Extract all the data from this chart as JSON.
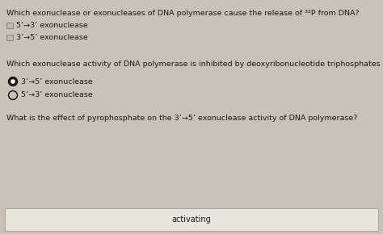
{
  "bg_color": "#c8c2b8",
  "content_bg": "#d8d2c8",
  "title1": "Which exonuclease or exonucleases of DNA polymerase cause the release of ³²P from DNA?",
  "checkbox1_label": "5’→3’ exonuclease",
  "checkbox2_label": "3’→5’ exonuclease",
  "title2": "Which exonuclease activity of DNA polymerase is inhibited by deoxyribonucleotide triphosphates (dNTPs)?",
  "radio1_label": "3’→5’ exonuclease",
  "radio2_label": "5’→3’ exonuclease",
  "title3": "What is the effect of pyrophosphate on the 3’→5’ exonuclease activity of DNA polymerase?",
  "answer_box_text": "activating",
  "answer_box_color": "#e8e4de",
  "answer_box_border": "#b0a898",
  "text_color": "#1a1a1a",
  "font_size_title": 6.8,
  "font_size_option": 6.8,
  "font_size_answer": 7.0,
  "checkbox_color": "#c0bab0",
  "checkbox_border": "#888880",
  "radio_filled_color": "#1a1a1a",
  "radio_empty_inner": "#c8c2b8"
}
